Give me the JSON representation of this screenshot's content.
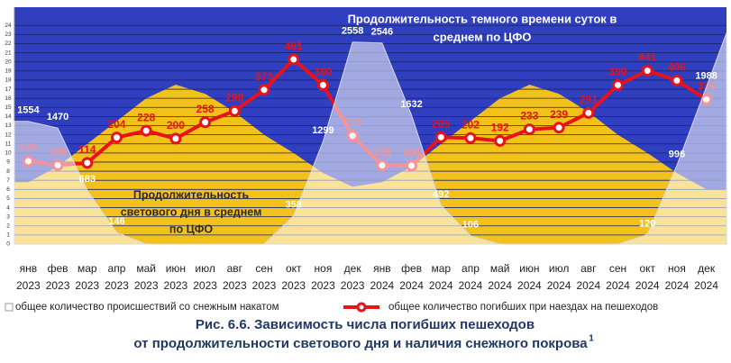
{
  "chart_data": {
    "type": "combo",
    "title": [
      "Рис. 6.6. Зависимость числа погибших пешеходов",
      "от продолжительности светового дня и наличия снежного покрова"
    ],
    "title_footnote": "1",
    "annotations": [
      {
        "lines": [
          "Продолжительность темного времени суток в",
          "среднем по ЦФО"
        ],
        "color": "#ffffff"
      },
      {
        "lines": [
          "Продолжительность",
          "светового дня в среднем",
          "по ЦФО"
        ],
        "color": "#2a2a2a"
      }
    ],
    "categories": [
      [
        "янв",
        "2023"
      ],
      [
        "фев",
        "2023"
      ],
      [
        "мар",
        "2023"
      ],
      [
        "апр",
        "2023"
      ],
      [
        "май",
        "2023"
      ],
      [
        "июн",
        "2023"
      ],
      [
        "июл",
        "2023"
      ],
      [
        "авг",
        "2023"
      ],
      [
        "сен",
        "2023"
      ],
      [
        "окт",
        "2023"
      ],
      [
        "ноя",
        "2023"
      ],
      [
        "дек",
        "2023"
      ],
      [
        "янв",
        "2024"
      ],
      [
        "фев",
        "2024"
      ],
      [
        "мар",
        "2024"
      ],
      [
        "апр",
        "2024"
      ],
      [
        "май",
        "2024"
      ],
      [
        "июн",
        "2024"
      ],
      [
        "июл",
        "2024"
      ],
      [
        "авг",
        "2024"
      ],
      [
        "сен",
        "2024"
      ],
      [
        "окт",
        "2024"
      ],
      [
        "ноя",
        "2024"
      ],
      [
        "дек",
        "2024"
      ]
    ],
    "ylim": [
      0,
      26
    ],
    "yticks": [
      0,
      1,
      2,
      3,
      4,
      5,
      6,
      7,
      8,
      9,
      10,
      11,
      12,
      13,
      14,
      15,
      16,
      17,
      18,
      19,
      20,
      21,
      22,
      23,
      24
    ],
    "y2lim": [
      0,
      3000
    ],
    "y3lim": [
      -174,
      666
    ],
    "grid": true,
    "background_color": "#2f3fbf",
    "daylight": {
      "color": "#f2c21b",
      "values": [
        6.8,
        8.5,
        11,
        13.5,
        16,
        17.5,
        16.5,
        14.5,
        12,
        10,
        7.8,
        6.3,
        6.8,
        8.5,
        11,
        13.5,
        16,
        17.5,
        16.5,
        14.5,
        12,
        10,
        7.8,
        6.0
      ]
    },
    "series": [
      {
        "name": "общее количество происшествий со снежным накатом",
        "axis": "y2",
        "color": "#ffffff",
        "values": [
          1554,
          1470,
          683,
          146,
          0,
          0,
          0,
          0,
          0,
          358,
          1299,
          2558,
          2546,
          1632,
          492,
          106,
          0,
          0,
          0,
          0,
          0,
          120,
          996,
          1988
        ],
        "value_labels": [
          "1554",
          "1470",
          "683",
          "146",
          null,
          null,
          null,
          null,
          null,
          "358",
          "1299",
          "2558",
          "2546",
          "1632",
          "492",
          "106",
          null,
          null,
          null,
          null,
          null,
          "120",
          "996",
          "1988"
        ]
      },
      {
        "name": "общее количество погибших при наездах на пешеходов",
        "axis": "y3",
        "color": "#e8121b",
        "values": [
          120,
          106,
          114,
          204,
          228,
          200,
          258,
          298,
          373,
          481,
          390,
          210,
          105,
          104,
          205,
          202,
          192,
          233,
          239,
          291,
          390,
          441,
          406,
          339
        ]
      }
    ]
  }
}
